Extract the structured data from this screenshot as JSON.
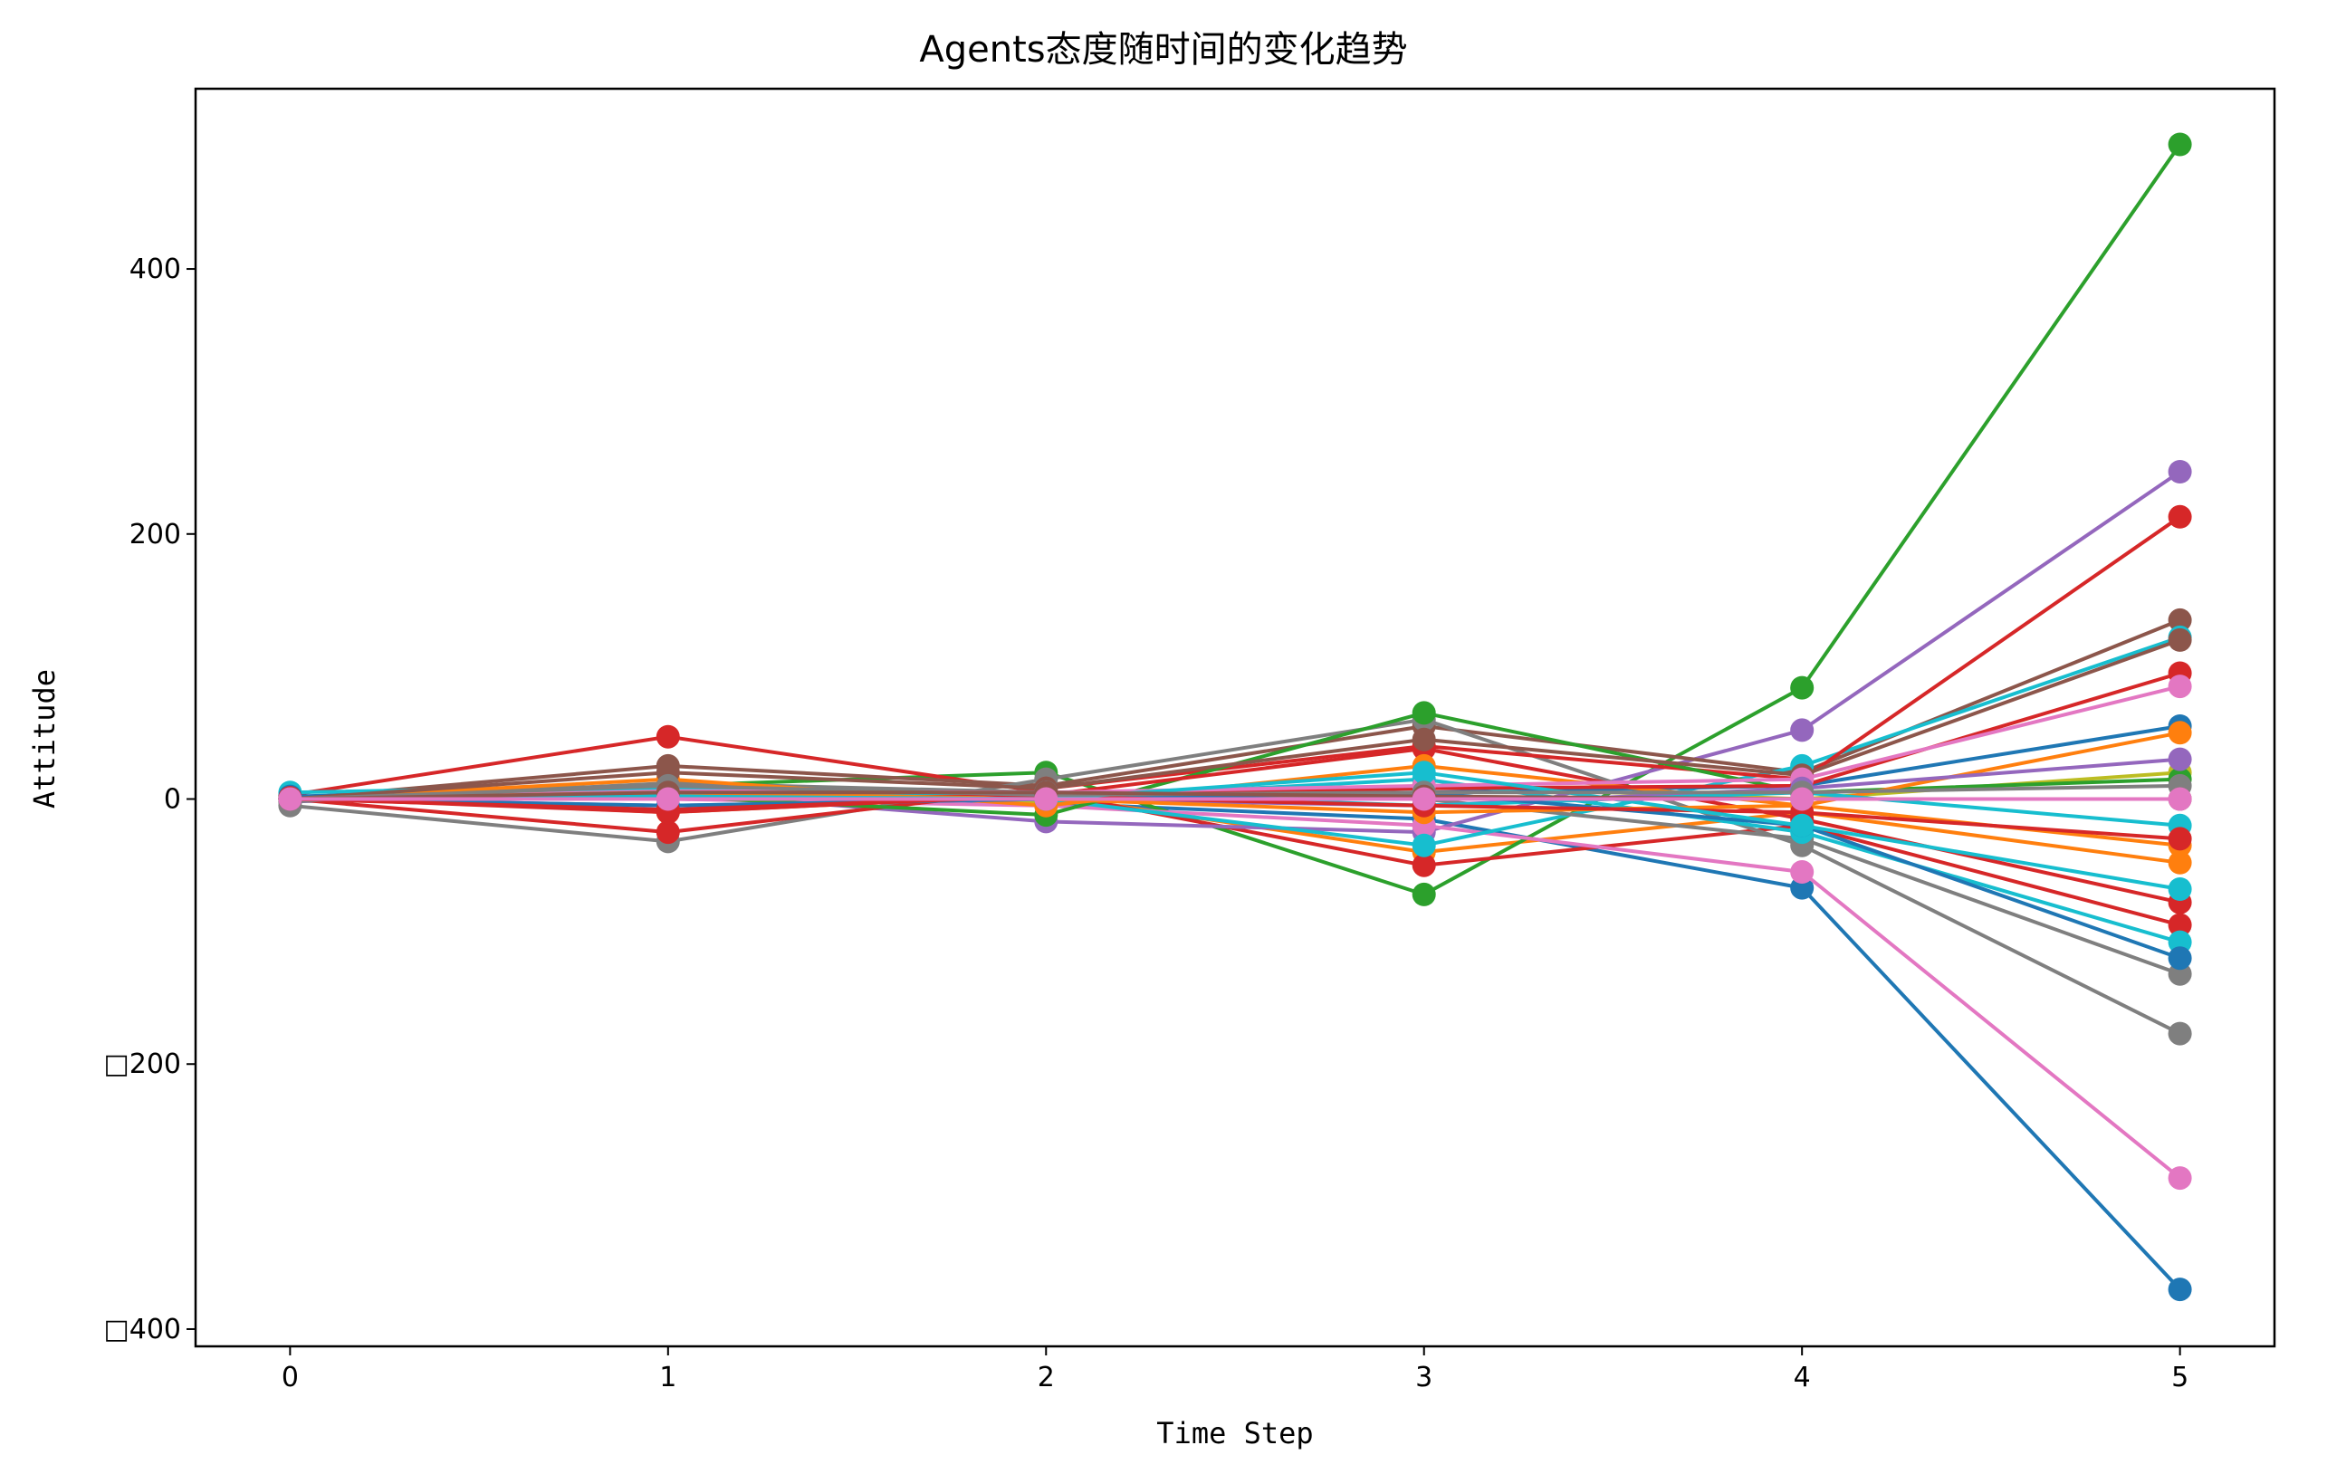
{
  "chart_data": {
    "type": "line",
    "title": "Agents态度随时间的变化趋势",
    "xlabel": "Time Step",
    "ylabel": "Attitude",
    "x": [
      0,
      1,
      2,
      3,
      4,
      5
    ],
    "xlim": [
      -0.25,
      5.25
    ],
    "ylim": [
      -413,
      536
    ],
    "xticks": [
      0,
      1,
      2,
      3,
      4,
      5
    ],
    "xtick_labels": [
      "0",
      "1",
      "2",
      "3",
      "4",
      "5"
    ],
    "yticks": [
      -400,
      -200,
      0,
      200,
      400
    ],
    "ytick_labels": [
      "□400",
      "□200",
      "0",
      "200",
      "400"
    ],
    "grid": false,
    "legend": "none",
    "marker": "circle",
    "series": [
      {
        "color": "#1f77b4",
        "values": [
          1,
          5,
          -3,
          -15,
          -67,
          -370
        ]
      },
      {
        "color": "#ff7f0e",
        "values": [
          2,
          -10,
          3,
          -40,
          -10,
          -48
        ]
      },
      {
        "color": "#2ca02c",
        "values": [
          -1,
          10,
          20,
          -72,
          84,
          494
        ]
      },
      {
        "color": "#d62728",
        "values": [
          3,
          47,
          5,
          -50,
          -20,
          -95
        ]
      },
      {
        "color": "#9467bd",
        "values": [
          -2,
          5,
          -17,
          -25,
          52,
          247
        ]
      },
      {
        "color": "#8c564b",
        "values": [
          0,
          25,
          10,
          55,
          20,
          135
        ]
      },
      {
        "color": "#e377c2",
        "values": [
          1,
          0,
          -5,
          -20,
          -55,
          -286
        ]
      },
      {
        "color": "#7f7f7f",
        "values": [
          -5,
          -32,
          15,
          60,
          -35,
          -177
        ]
      },
      {
        "color": "#bcbd22",
        "values": [
          0,
          3,
          -2,
          10,
          0,
          20
        ]
      },
      {
        "color": "#17becf",
        "values": [
          5,
          10,
          0,
          -35,
          25,
          122
        ]
      },
      {
        "color": "#d62728",
        "values": [
          0,
          -25,
          8,
          40,
          15,
          213
        ]
      },
      {
        "color": "#1f77b4",
        "values": [
          2,
          8,
          2,
          5,
          10,
          55
        ]
      },
      {
        "color": "#2ca02c",
        "values": [
          0,
          2,
          -12,
          65,
          5,
          15
        ]
      },
      {
        "color": "#d62728",
        "values": [
          1,
          -10,
          3,
          38,
          -15,
          -78
        ]
      },
      {
        "color": "#7f7f7f",
        "values": [
          -2,
          12,
          5,
          0,
          -30,
          -132
        ]
      },
      {
        "color": "#17becf",
        "values": [
          0,
          8,
          0,
          15,
          -25,
          -108
        ]
      },
      {
        "color": "#ff7f0e",
        "values": [
          0,
          15,
          -5,
          25,
          -5,
          50
        ]
      },
      {
        "color": "#8c564b",
        "values": [
          0,
          20,
          8,
          45,
          18,
          120
        ]
      },
      {
        "color": "#d62728",
        "values": [
          0,
          4,
          2,
          8,
          10,
          95
        ]
      },
      {
        "color": "#e377c2",
        "values": [
          0,
          6,
          5,
          10,
          15,
          85
        ]
      },
      {
        "color": "#9467bd",
        "values": [
          0,
          -5,
          0,
          -5,
          8,
          30
        ]
      },
      {
        "color": "#17becf",
        "values": [
          0,
          3,
          5,
          -5,
          5,
          -20
        ]
      },
      {
        "color": "#1f77b4",
        "values": [
          0,
          -5,
          0,
          5,
          -20,
          -120
        ]
      },
      {
        "color": "#ff7f0e",
        "values": [
          0,
          5,
          0,
          -10,
          -5,
          -35
        ]
      },
      {
        "color": "#d62728",
        "values": [
          0,
          -8,
          2,
          -5,
          -10,
          -30
        ]
      },
      {
        "color": "#17becf",
        "values": [
          0,
          2,
          0,
          20,
          -20,
          -68
        ]
      },
      {
        "color": "#7f7f7f",
        "values": [
          0,
          10,
          3,
          5,
          5,
          10
        ]
      },
      {
        "color": "#8c564b",
        "values": [
          0,
          5,
          5,
          2,
          0,
          0
        ]
      },
      {
        "color": "#e377c2",
        "values": [
          0,
          0,
          0,
          0,
          0,
          0
        ]
      }
    ]
  }
}
